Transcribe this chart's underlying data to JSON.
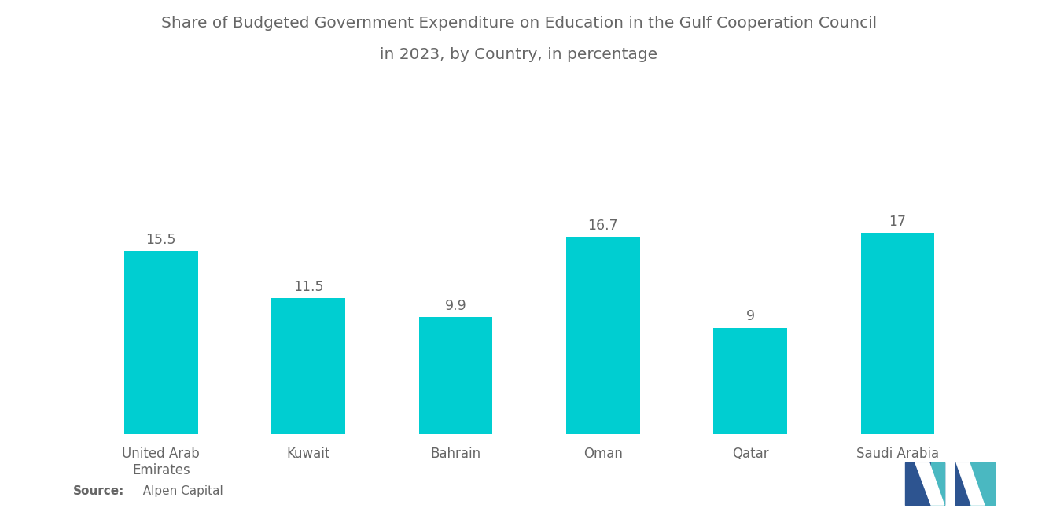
{
  "title_line1": "Share of Budgeted Government Expenditure on Education in the Gulf Cooperation Council",
  "title_line2": "in 2023, by Country, in percentage",
  "categories": [
    "United Arab\nEmirates",
    "Kuwait",
    "Bahrain",
    "Oman",
    "Qatar",
    "Saudi Arabia"
  ],
  "values": [
    15.5,
    11.5,
    9.9,
    16.7,
    9,
    17
  ],
  "bar_color": "#00CED1",
  "background_color": "#ffffff",
  "title_fontsize": 14.5,
  "label_fontsize": 12,
  "value_fontsize": 12.5,
  "source_bold": "Source:",
  "source_normal": "  Alpen Capital",
  "ylim": [
    0,
    23
  ],
  "bar_width": 0.5,
  "text_color": "#666666",
  "logo_left_color": "#2d5490",
  "logo_right_color": "#4ab8c1"
}
